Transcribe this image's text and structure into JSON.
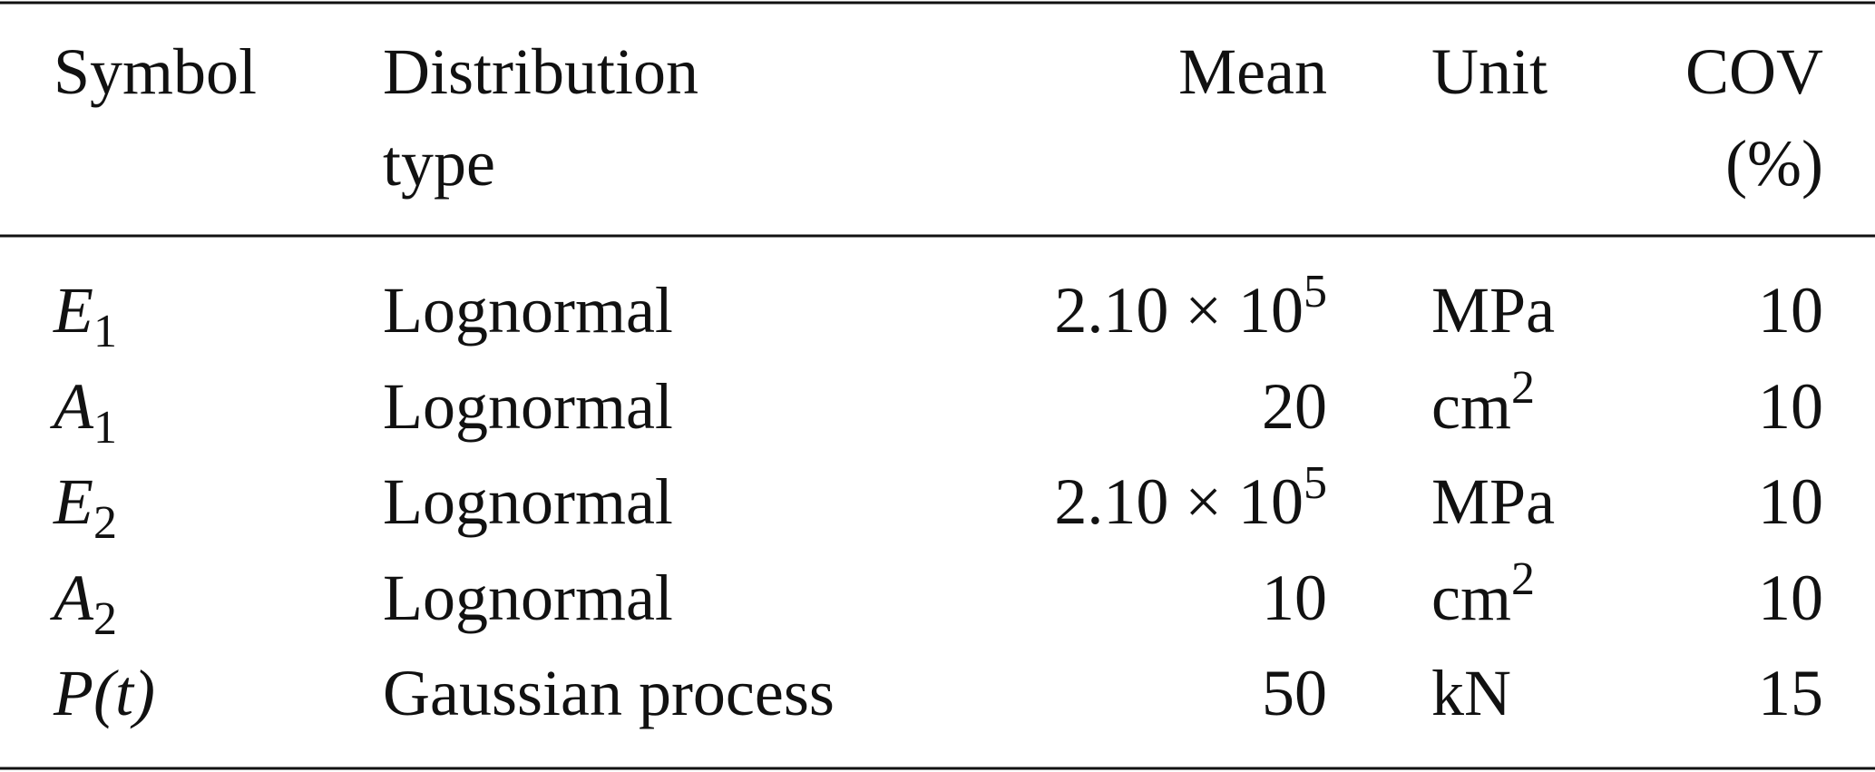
{
  "table": {
    "header": [
      [
        "Symbol"
      ],
      [
        "Distribution",
        "type"
      ],
      [
        "Mean"
      ],
      [
        "Unit"
      ],
      [
        "COV",
        "(%)"
      ]
    ],
    "rows": [
      {
        "symbol": {
          "text": "E",
          "sub": "1"
        },
        "distribution": "Lognormal",
        "mean": {
          "text": "2.10 × 10",
          "sup": "5"
        },
        "unit": "MPa",
        "cov": "10"
      },
      {
        "symbol": {
          "text": "A",
          "sub": "1"
        },
        "distribution": "Lognormal",
        "mean": "20",
        "unit": {
          "text": "cm",
          "sup": "2"
        },
        "cov": "10"
      },
      {
        "symbol": {
          "text": "E",
          "sub": "2"
        },
        "distribution": "Lognormal",
        "mean": {
          "text": "2.10 × 10",
          "sup": "5"
        },
        "unit": "MPa",
        "cov": "10"
      },
      {
        "symbol": {
          "text": "A",
          "sub": "2"
        },
        "distribution": "Lognormal",
        "mean": "10",
        "unit": {
          "text": "cm",
          "sup": "2"
        },
        "cov": "10"
      },
      {
        "symbol": {
          "text": "P(t)"
        },
        "distribution": "Gaussian process",
        "mean": "50",
        "unit": "kN",
        "cov": "15"
      }
    ]
  }
}
